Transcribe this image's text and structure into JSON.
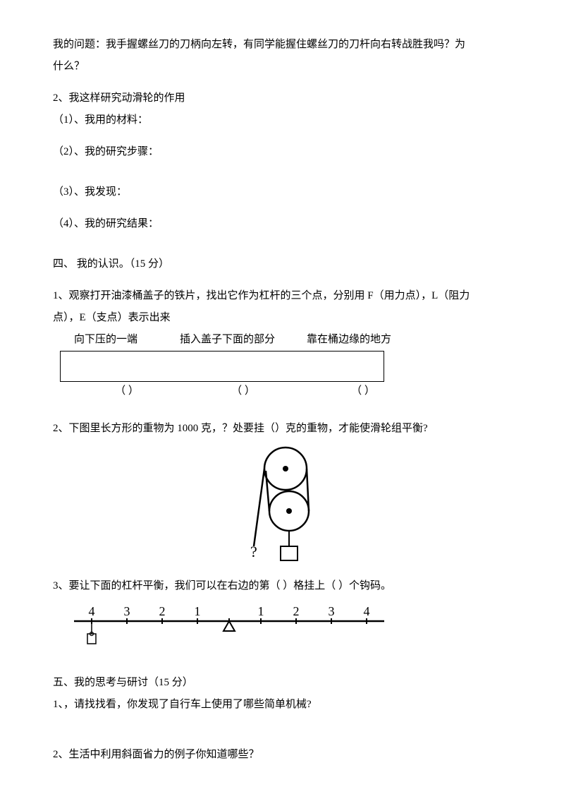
{
  "q1_line1": "  我的问题：我手握螺丝刀的刀柄向左转，有同学能握住螺丝刀的刀杆向右转战胜我吗？为",
  "q1_line2": "什么？",
  "q2_title": "2、我这样研究动滑轮的作用",
  "q2_1": "（1）、我用的材料：",
  "q2_2": "（2）、我的研究步骤：",
  "q2_3": "（3）、我发现：",
  "q2_4": "（4）、我的研究结果：",
  "section4": "四、 我的认识。（15 分）",
  "s4_q1_line1": "1、观察打开油漆桶盖子的铁片，找出它作为杠杆的三个点，分别用 F（用力点），L（阻力",
  "s4_q1_line2": "点），E（支点）表示出来",
  "header1": "向下压的一端",
  "header2": "插入盖子下面的部分",
  "header3": "靠在桶边缘的地方",
  "paren": "（          ）",
  "s4_q2": "2、下图里长方形的重物为 1000 克，？处要挂（）克的重物，才能使滑轮组平衡?",
  "s4_q3": "3、要让下面的杠杆平衡，我们可以在右边的第（       ）格挂上（       ）个钩码。",
  "section5": "五、我的思考与研讨（15 分）",
  "s5_q1": "1、，请找找看，你发现了自行车上使用了哪些简单机械?",
  "s5_q2": "2、生活中利用斜面省力的例子你知道哪些？",
  "lever_labels": [
    "4",
    "3",
    "2",
    "1",
    "1",
    "2",
    "3",
    "4"
  ],
  "colors": {
    "text": "#000000",
    "bg": "#ffffff",
    "line": "#000000"
  }
}
